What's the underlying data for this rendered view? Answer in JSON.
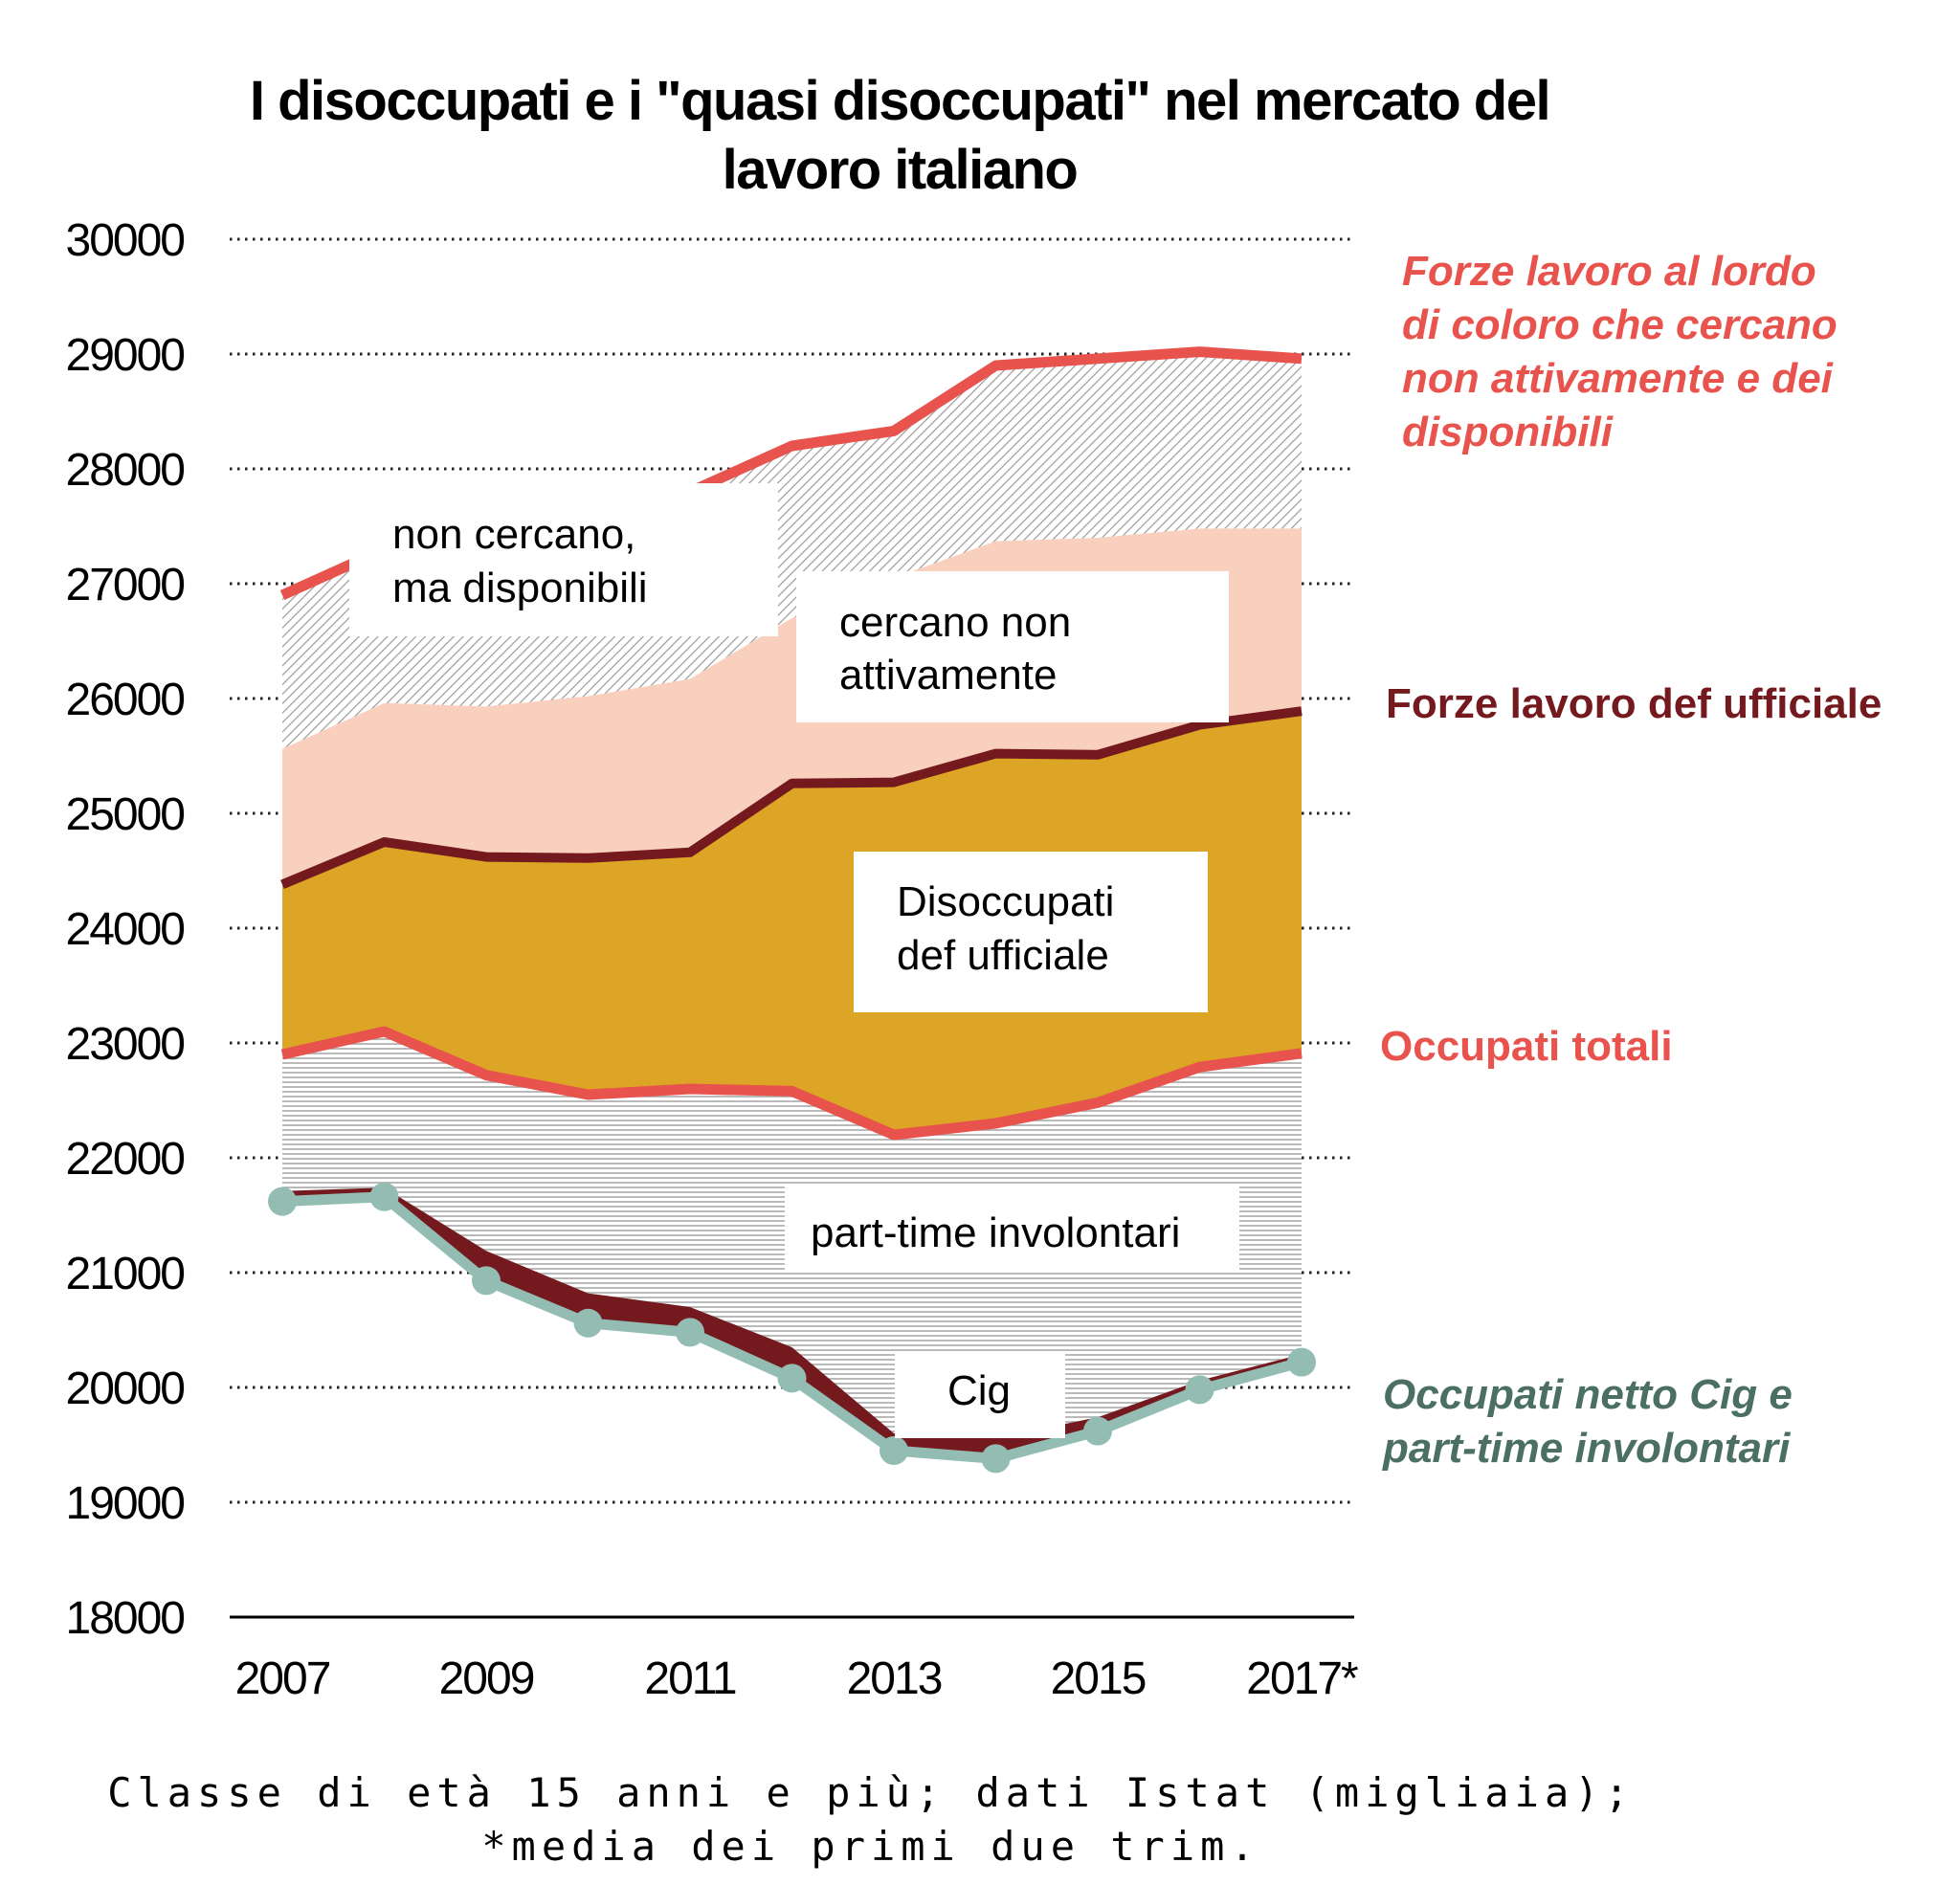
{
  "title_lines": [
    "I disoccupati e i \"quasi disoccupati\" nel mercato del",
    "lavoro italiano"
  ],
  "note_lines": [
    "Classe di età 15 anni e più; dati Istat (migliaia);",
    "*media dei primi due trim."
  ],
  "colors": {
    "forze_lordo": "#E8534D",
    "forze_ufficiale": "#741A1F",
    "occupati_totali": "#E8534D",
    "occupati_netto": "#93BDB2",
    "occupati_netto_label": "#4B7062",
    "disoccupati_fill": "#DCA525",
    "cercano_fill": "#F9CFBE",
    "hatch_gray": "#9A9A9A",
    "cig_fill": "#741A1F"
  },
  "chart_data": {
    "type": "area",
    "x": [
      2007,
      2008,
      2009,
      2010,
      2011,
      2012,
      2013,
      2014,
      2015,
      2016,
      2017
    ],
    "x_tick_labels": [
      "2007",
      "2009",
      "2011",
      "2013",
      "2015",
      "2017*"
    ],
    "x_tick_values": [
      2007,
      2009,
      2011,
      2013,
      2015,
      2017
    ],
    "y_ticks": [
      18000,
      19000,
      20000,
      21000,
      22000,
      23000,
      24000,
      25000,
      26000,
      27000,
      28000,
      29000,
      30000
    ],
    "ylim": [
      18000,
      30000
    ],
    "grid": "horizontal-dotted",
    "series": [
      {
        "key": "forze_lordo",
        "name": "Forze lavoro al lordo di coloro che cercano non attivamente e dei disponibili",
        "values": [
          26900,
          27300,
          27600,
          27700,
          27800,
          28200,
          28330,
          28900,
          28960,
          29020,
          28960
        ]
      },
      {
        "key": "cercano_top",
        "values": [
          25560,
          25960,
          25930,
          26020,
          26170,
          26700,
          27050,
          27370,
          27400,
          27480,
          27480
        ]
      },
      {
        "key": "forze_ufficiale",
        "name": "Forze lavoro def ufficiale",
        "values": [
          24380,
          24750,
          24620,
          24610,
          24660,
          25260,
          25270,
          25520,
          25510,
          25770,
          25890
        ]
      },
      {
        "key": "occupati_totali",
        "name": "Occupati totali",
        "values": [
          22900,
          23100,
          22720,
          22550,
          22600,
          22580,
          22200,
          22300,
          22480,
          22790,
          22910
        ]
      },
      {
        "key": "cig_top",
        "values": [
          21710,
          21740,
          21190,
          20820,
          20700,
          20350,
          19600,
          19560,
          19740,
          20060,
          20290
        ]
      },
      {
        "key": "occupati_netto",
        "name": "Occupati netto Cig e part-time involontari",
        "values": [
          21620,
          21660,
          20930,
          20560,
          20480,
          20080,
          19450,
          19380,
          19620,
          19980,
          20220
        ]
      }
    ],
    "area_labels": [
      {
        "key": "non_cercano",
        "lines": [
          "non cercano,",
          "ma disponibili"
        ]
      },
      {
        "key": "cercano",
        "lines": [
          "cercano non",
          "attivamente"
        ]
      },
      {
        "key": "disoccupati",
        "lines": [
          "Disoccupati",
          "def ufficiale"
        ]
      },
      {
        "key": "part_time",
        "lines": [
          "part-time involontari"
        ]
      },
      {
        "key": "cig",
        "lines": [
          "Cig"
        ]
      }
    ],
    "series_labels": [
      {
        "key": "forze_lordo",
        "lines": [
          "Forze lavoro al lordo",
          "di coloro che cercano",
          "non attivamente e dei",
          "disponibili"
        ],
        "italic": true
      },
      {
        "key": "forze_ufficiale",
        "lines": [
          "Forze lavoro def ufficiale"
        ],
        "italic": false
      },
      {
        "key": "occupati_totali",
        "lines": [
          "Occupati totali"
        ],
        "italic": false
      },
      {
        "key": "occupati_netto",
        "lines": [
          "Occupati netto Cig e",
          "part-time involontari"
        ],
        "italic": true
      }
    ]
  }
}
